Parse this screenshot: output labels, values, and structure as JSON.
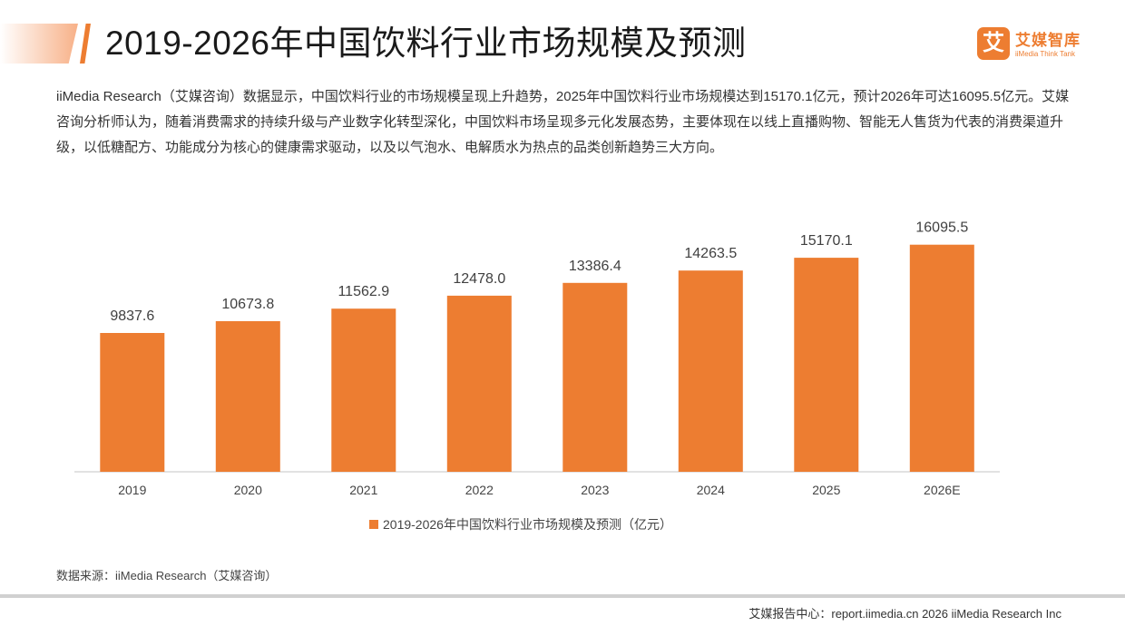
{
  "header": {
    "title": "2019-2026年中国饮料行业市场规模及预测"
  },
  "brand": {
    "mark": "艾",
    "name": "艾媒智库",
    "tagline": "iiMedia Think Tank"
  },
  "intro": {
    "text": "iiMedia Research（艾媒咨询）数据显示，中国饮料行业的市场规模呈现上升趋势，2025年中国饮料行业市场规模达到15170.1亿元，预计2026年可达16095.5亿元。艾媒咨询分析师认为，随着消费需求的持续升级与产业数字化转型深化，中国饮料市场呈现多元化发展态势，主要体现在以线上直播购物、智能无人售货为代表的消费渠道升级，以低糖配方、功能成分为核心的健康需求驱动，以及以气泡水、电解质水为热点的品类创新趋势三大方向。"
  },
  "chart_data": {
    "type": "bar",
    "title": "",
    "categories": [
      "2019",
      "2020",
      "2021",
      "2022",
      "2023",
      "2024",
      "2025",
      "2026E"
    ],
    "series": [
      {
        "name": "2019-2026年中国饮料行业市场规模及预测（亿元）",
        "values": [
          9837.6,
          10673.8,
          11562.9,
          12478.0,
          13386.4,
          14263.5,
          15170.1,
          16095.5
        ],
        "labels": [
          "9837.6",
          "10673.8",
          "11562.9",
          "12478.0",
          "13386.4",
          "14263.5",
          "15170.1",
          "16095.5"
        ],
        "color": "#ed7d31"
      }
    ],
    "xlabel": "",
    "ylabel": "",
    "ylim": [
      0,
      18500
    ],
    "grid": false,
    "legend_position": "bottom",
    "data_labels": true
  },
  "legend": {
    "label": "2019-2026年中国饮料行业市场规模及预测（亿元）"
  },
  "source": {
    "text": "数据来源：iiMedia Research（艾媒咨询）"
  },
  "footer": {
    "text": "艾媒报告中心：report.iimedia.cn  2026 iiMedia Research Inc"
  },
  "colors": {
    "accent": "#ed7d31",
    "axis": "#d9d9d9",
    "text": "#333333"
  }
}
